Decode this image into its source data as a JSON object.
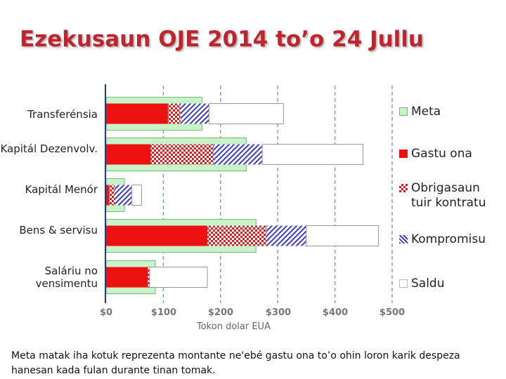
{
  "title": "Ezekusaun OJE 2014 to’o 24 Jullu",
  "footnote": "Meta matak iha kotuk reprezenta montante ne'ebé gastu ona to’o ohin loron karik despeza hanesan kada fulan durante tinan tomak.",
  "chart_data": {
    "type": "bar",
    "orientation": "horizontal",
    "stacked": true,
    "title": "Ezekusaun OJE 2014 to’o 24 Jullu",
    "xlabel": "Tokon dolar EUA",
    "ylabel": "",
    "xlim": [
      0,
      500
    ],
    "xticks": [
      "$0",
      "$100",
      "$200",
      "$300",
      "$400",
      "$500"
    ],
    "xtick_values": [
      0,
      100,
      200,
      300,
      400,
      500
    ],
    "grid": "vertical dashed",
    "legend_position": "right",
    "categories": [
      "Transferénsia",
      "Kapitál Dezenvolv.",
      "Kapitál Menór",
      "Bens & servisu",
      "Saláriu no vensimentu"
    ],
    "meta": {
      "name": "Meta",
      "values": [
        168,
        245,
        32,
        262,
        86
      ]
    },
    "series": [
      {
        "name": "Gastu ona",
        "values": [
          108,
          78,
          5,
          177,
          73
        ]
      },
      {
        "name": "Obrigasaun tuir kontratu",
        "values": [
          22,
          110,
          10,
          103,
          3
        ]
      },
      {
        "name": "Kompromisu",
        "values": [
          50,
          85,
          30,
          70,
          0
        ]
      },
      {
        "name": "Saldu",
        "values": [
          130,
          176,
          17,
          126,
          101
        ]
      }
    ],
    "colors": {
      "Meta": "#c8f2c8",
      "Meta_border": "#79b779",
      "Gastu ona": "#ee1111",
      "Obrigasaun tuir kontratu": "#ee1111",
      "Kompromisu": "#3b3bc8",
      "Saldu": "#ffffff",
      "axis": "#1f3a88",
      "grid": "#7e93c8"
    }
  }
}
